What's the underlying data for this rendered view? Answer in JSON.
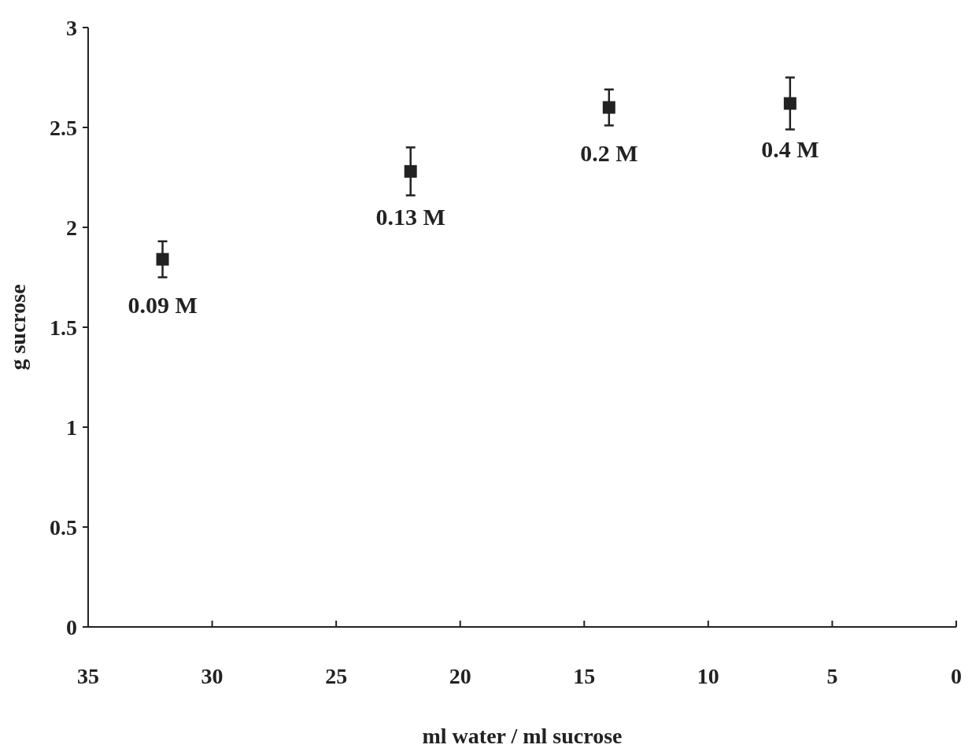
{
  "chart_data": {
    "type": "scatter",
    "xlabel": "ml water / ml sucrose",
    "ylabel": "g sucrose",
    "x": [
      32,
      22,
      14,
      6.7
    ],
    "values": [
      1.84,
      2.28,
      2.6,
      2.62
    ],
    "errors": [
      0.09,
      0.12,
      0.09,
      0.13
    ],
    "color": "#222222",
    "marker": "square",
    "xlim": [
      35,
      0
    ],
    "xticks": [
      35,
      30,
      25,
      20,
      15,
      10,
      5,
      0
    ],
    "ylim": [
      0,
      3
    ],
    "yticks": [
      0,
      0.5,
      1,
      1.5,
      2,
      2.5,
      3
    ],
    "grid": false,
    "annotations": [
      {
        "text": "0.09 M",
        "x": 32,
        "y": 1.84
      },
      {
        "text": "0.13 M",
        "x": 22,
        "y": 2.28
      },
      {
        "text": "0.2 M",
        "x": 14,
        "y": 2.6
      },
      {
        "text": "0.4 M",
        "x": 6.7,
        "y": 2.62
      }
    ]
  }
}
